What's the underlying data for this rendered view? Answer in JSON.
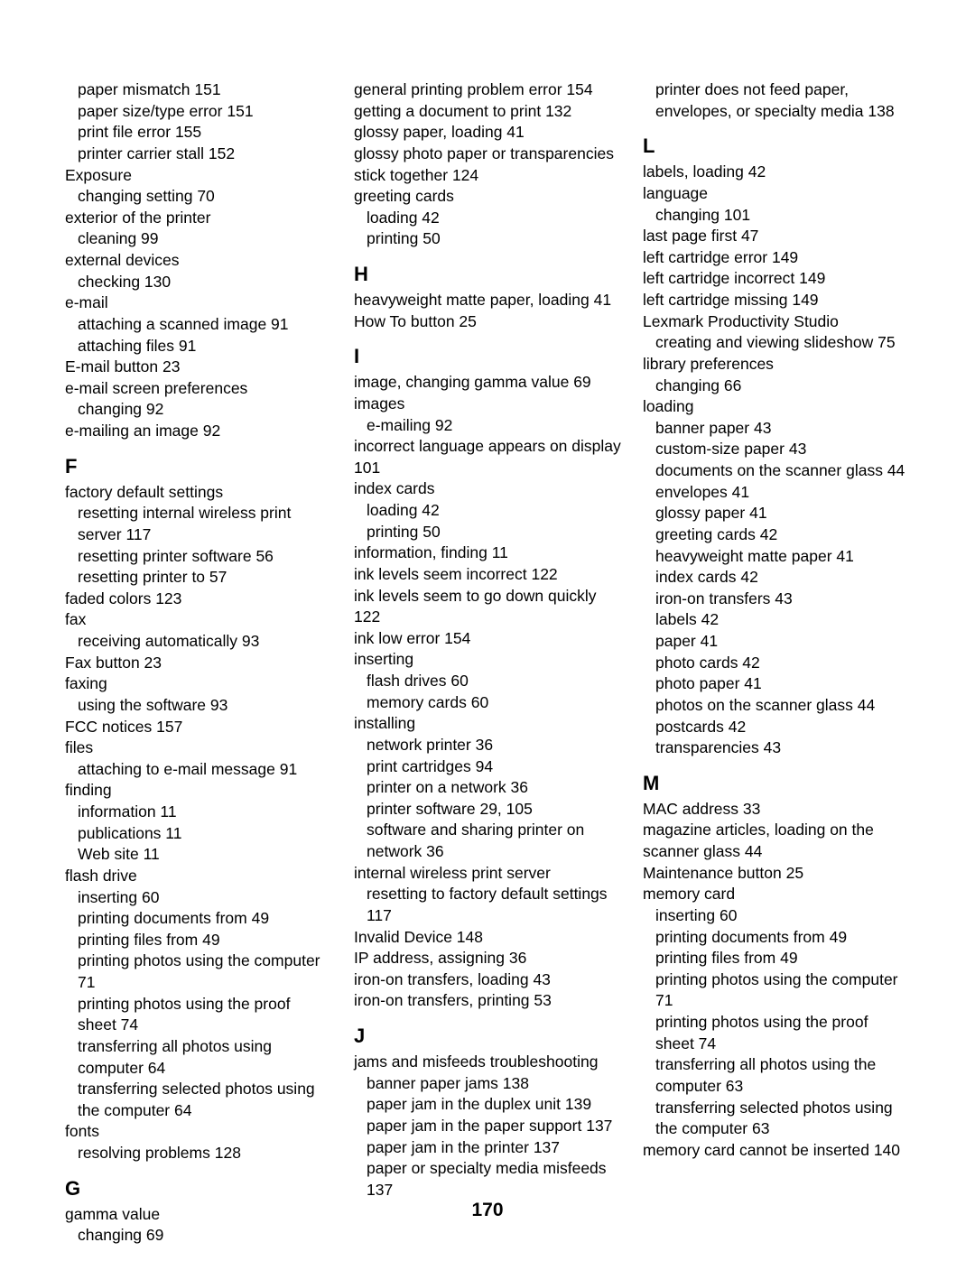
{
  "pageNumber": "170",
  "columns": [
    {
      "items": [
        {
          "t": "sub",
          "v": "paper mismatch  151"
        },
        {
          "t": "sub",
          "v": "paper size/type error  151"
        },
        {
          "t": "sub",
          "v": "print file error  155"
        },
        {
          "t": "sub",
          "v": "printer carrier stall  152"
        },
        {
          "t": "entry",
          "v": "Exposure"
        },
        {
          "t": "sub",
          "v": "changing setting  70"
        },
        {
          "t": "entry",
          "v": "exterior of the printer"
        },
        {
          "t": "sub",
          "v": "cleaning  99"
        },
        {
          "t": "entry",
          "v": "external devices"
        },
        {
          "t": "sub",
          "v": "checking  130"
        },
        {
          "t": "entry",
          "v": "e-mail"
        },
        {
          "t": "sub",
          "v": "attaching a scanned image  91"
        },
        {
          "t": "sub",
          "v": "attaching files  91"
        },
        {
          "t": "entry",
          "v": "E-mail button  23"
        },
        {
          "t": "entry",
          "v": "e-mail screen preferences"
        },
        {
          "t": "sub",
          "v": "changing  92"
        },
        {
          "t": "entry",
          "v": "e-mailing an image  92"
        },
        {
          "t": "heading",
          "v": "F"
        },
        {
          "t": "entry",
          "v": "factory default settings"
        },
        {
          "t": "sub",
          "v": "resetting internal wireless print server  117"
        },
        {
          "t": "sub",
          "v": "resetting printer software  56"
        },
        {
          "t": "sub",
          "v": "resetting printer to  57"
        },
        {
          "t": "entry",
          "v": "faded colors  123"
        },
        {
          "t": "entry",
          "v": "fax"
        },
        {
          "t": "sub",
          "v": "receiving automatically  93"
        },
        {
          "t": "entry",
          "v": "Fax button  23"
        },
        {
          "t": "entry",
          "v": "faxing"
        },
        {
          "t": "sub",
          "v": "using the software  93"
        },
        {
          "t": "entry",
          "v": "FCC notices  157"
        },
        {
          "t": "entry",
          "v": "files"
        },
        {
          "t": "sub",
          "v": "attaching to e-mail message  91"
        },
        {
          "t": "entry",
          "v": "finding"
        },
        {
          "t": "sub",
          "v": "information  11"
        },
        {
          "t": "sub",
          "v": "publications  11"
        },
        {
          "t": "sub",
          "v": "Web site  11"
        },
        {
          "t": "entry",
          "v": "flash drive"
        },
        {
          "t": "sub",
          "v": "inserting  60"
        },
        {
          "t": "sub",
          "v": "printing documents from  49"
        },
        {
          "t": "sub",
          "v": "printing files from  49"
        },
        {
          "t": "sub",
          "v": "printing photos using the computer  71"
        },
        {
          "t": "sub",
          "v": "printing photos using the proof sheet  74"
        },
        {
          "t": "sub",
          "v": "transferring all photos using computer  64"
        },
        {
          "t": "sub",
          "v": "transferring selected photos using the computer  64"
        },
        {
          "t": "entry",
          "v": "fonts"
        },
        {
          "t": "sub",
          "v": "resolving problems  128"
        },
        {
          "t": "heading",
          "v": "G"
        },
        {
          "t": "entry",
          "v": "gamma value"
        },
        {
          "t": "sub",
          "v": "changing  69"
        }
      ]
    },
    {
      "items": [
        {
          "t": "entry",
          "v": "general printing problem error  154"
        },
        {
          "t": "entry",
          "v": "getting a document to print  132"
        },
        {
          "t": "entry",
          "v": "glossy paper, loading  41"
        },
        {
          "t": "entry",
          "v": "glossy photo paper or transparencies stick together  124"
        },
        {
          "t": "entry",
          "v": "greeting cards"
        },
        {
          "t": "sub",
          "v": "loading  42"
        },
        {
          "t": "sub",
          "v": "printing  50"
        },
        {
          "t": "heading",
          "v": "H"
        },
        {
          "t": "entry",
          "v": "heavyweight matte paper, loading  41"
        },
        {
          "t": "entry",
          "v": "How To button  25"
        },
        {
          "t": "heading",
          "v": "I"
        },
        {
          "t": "entry",
          "v": "image, changing gamma value  69"
        },
        {
          "t": "entry",
          "v": "images"
        },
        {
          "t": "sub",
          "v": "e-mailing  92"
        },
        {
          "t": "entry",
          "v": "incorrect language appears on display  101"
        },
        {
          "t": "entry",
          "v": "index cards"
        },
        {
          "t": "sub",
          "v": "loading  42"
        },
        {
          "t": "sub",
          "v": "printing  50"
        },
        {
          "t": "entry",
          "v": "information, finding  11"
        },
        {
          "t": "entry",
          "v": "ink levels seem incorrect  122"
        },
        {
          "t": "entry",
          "v": "ink levels seem to go down quickly  122"
        },
        {
          "t": "entry",
          "v": "ink low error  154"
        },
        {
          "t": "entry",
          "v": "inserting"
        },
        {
          "t": "sub",
          "v": "flash drives  60"
        },
        {
          "t": "sub",
          "v": "memory cards  60"
        },
        {
          "t": "entry",
          "v": "installing"
        },
        {
          "t": "sub",
          "v": "network printer  36"
        },
        {
          "t": "sub",
          "v": "print cartridges  94"
        },
        {
          "t": "sub",
          "v": "printer on a network  36"
        },
        {
          "t": "sub",
          "v": "printer software  29, 105"
        },
        {
          "t": "sub",
          "v": "software and sharing printer on network  36"
        },
        {
          "t": "entry",
          "v": "internal wireless print server"
        },
        {
          "t": "sub",
          "v": "resetting to factory default settings  117"
        },
        {
          "t": "entry",
          "v": "Invalid Device  148"
        },
        {
          "t": "entry",
          "v": "IP address, assigning  36"
        },
        {
          "t": "entry",
          "v": "iron-on transfers, loading  43"
        },
        {
          "t": "entry",
          "v": "iron-on transfers, printing  53"
        },
        {
          "t": "heading",
          "v": "J"
        },
        {
          "t": "entry",
          "v": "jams and misfeeds troubleshooting"
        },
        {
          "t": "sub",
          "v": "banner paper jams  138"
        },
        {
          "t": "sub",
          "v": "paper jam in the duplex unit  139"
        },
        {
          "t": "sub",
          "v": "paper jam in the paper support  137"
        },
        {
          "t": "sub",
          "v": "paper jam in the printer  137"
        },
        {
          "t": "sub",
          "v": "paper or specialty media misfeeds  137"
        }
      ]
    },
    {
      "items": [
        {
          "t": "sub",
          "v": "printer does not feed paper, envelopes, or specialty media  138"
        },
        {
          "t": "heading",
          "v": "L"
        },
        {
          "t": "entry",
          "v": "labels, loading  42"
        },
        {
          "t": "entry",
          "v": "language"
        },
        {
          "t": "sub",
          "v": "changing  101"
        },
        {
          "t": "entry",
          "v": "last page first  47"
        },
        {
          "t": "entry",
          "v": "left cartridge error  149"
        },
        {
          "t": "entry",
          "v": "left cartridge incorrect  149"
        },
        {
          "t": "entry",
          "v": "left cartridge missing  149"
        },
        {
          "t": "entry",
          "v": "Lexmark Productivity Studio"
        },
        {
          "t": "sub",
          "v": "creating and viewing slideshow  75"
        },
        {
          "t": "entry",
          "v": "library preferences"
        },
        {
          "t": "sub",
          "v": "changing  66"
        },
        {
          "t": "entry",
          "v": "loading"
        },
        {
          "t": "sub",
          "v": "banner paper  43"
        },
        {
          "t": "sub",
          "v": "custom-size paper  43"
        },
        {
          "t": "sub",
          "v": "documents on the scanner glass  44"
        },
        {
          "t": "sub",
          "v": "envelopes  41"
        },
        {
          "t": "sub",
          "v": "glossy paper  41"
        },
        {
          "t": "sub",
          "v": "greeting cards  42"
        },
        {
          "t": "sub",
          "v": "heavyweight matte paper  41"
        },
        {
          "t": "sub",
          "v": "index cards  42"
        },
        {
          "t": "sub",
          "v": "iron-on transfers  43"
        },
        {
          "t": "sub",
          "v": "labels  42"
        },
        {
          "t": "sub",
          "v": "paper  41"
        },
        {
          "t": "sub",
          "v": "photo cards  42"
        },
        {
          "t": "sub",
          "v": "photo paper  41"
        },
        {
          "t": "sub",
          "v": "photos on the scanner glass  44"
        },
        {
          "t": "sub",
          "v": "postcards  42"
        },
        {
          "t": "sub",
          "v": "transparencies  43"
        },
        {
          "t": "heading",
          "v": "M"
        },
        {
          "t": "entry",
          "v": "MAC address  33"
        },
        {
          "t": "entry",
          "v": "magazine articles, loading on the scanner glass  44"
        },
        {
          "t": "entry",
          "v": "Maintenance button  25"
        },
        {
          "t": "entry",
          "v": "memory card"
        },
        {
          "t": "sub",
          "v": "inserting  60"
        },
        {
          "t": "sub",
          "v": "printing documents from  49"
        },
        {
          "t": "sub",
          "v": "printing files from  49"
        },
        {
          "t": "sub",
          "v": "printing photos using the computer  71"
        },
        {
          "t": "sub",
          "v": "printing photos using the proof sheet  74"
        },
        {
          "t": "sub",
          "v": "transferring all photos using the computer  63"
        },
        {
          "t": "sub",
          "v": "transferring selected photos using the computer  63"
        },
        {
          "t": "entry",
          "v": "memory card cannot be inserted  140"
        }
      ]
    }
  ]
}
